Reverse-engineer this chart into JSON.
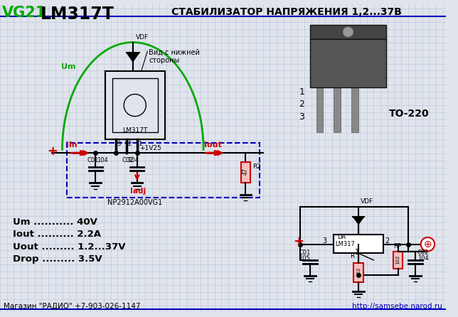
{
  "bg_color": "#e0e4ec",
  "grid_color": "#b8c4d8",
  "title_left": "LM317T",
  "title_vg21": "VG21",
  "title_right": "СТАБИЛИЗАТОР НАПРЯЖЕНИЯ 1,2...37В",
  "specs": [
    "Um ........... 40V",
    "Iout .......... 2.2A",
    "Uout ......... 1.2...37V",
    "Drop ......... 3.5V"
  ],
  "bottom_left": "Магазин \"РАДИО\" +7-903-026-1147",
  "bottom_right": "http://samsebe.narod.ru",
  "package_label": "TO-220",
  "part_label": "NP2912A00VG1",
  "green_color": "#00aa00",
  "red_color": "#cc0000",
  "blue_color": "#0000bb",
  "black_color": "#000000",
  "white_color": "#ffffff"
}
